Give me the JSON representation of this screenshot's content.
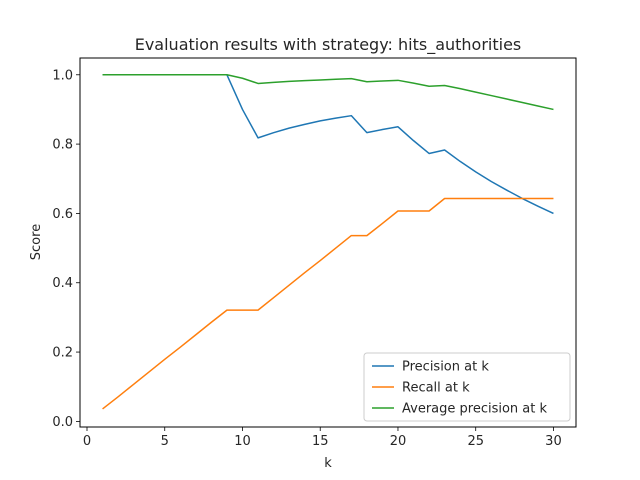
{
  "chart_data": {
    "type": "line",
    "title": "Evaluation results with strategy: hits_authorities",
    "xlabel": "k",
    "ylabel": "Score",
    "xlim": [
      -0.45,
      31.45
    ],
    "ylim": [
      -0.0162,
      1.0484
    ],
    "xticks": [
      0,
      5,
      10,
      15,
      20,
      25,
      30
    ],
    "yticks": [
      0.0,
      0.2,
      0.4,
      0.6,
      0.8,
      1.0
    ],
    "xtick_labels": [
      "0",
      "5",
      "10",
      "15",
      "20",
      "25",
      "30"
    ],
    "ytick_labels": [
      "0.0",
      "0.2",
      "0.4",
      "0.6",
      "0.8",
      "1.0"
    ],
    "legend": "lower-right",
    "grid": false,
    "x": [
      1,
      2,
      3,
      4,
      5,
      6,
      7,
      8,
      9,
      10,
      11,
      12,
      13,
      14,
      15,
      16,
      17,
      18,
      19,
      20,
      21,
      22,
      23,
      24,
      25,
      26,
      27,
      28,
      29,
      30
    ],
    "series": [
      {
        "name": "Precision at k",
        "color": "#1f77b4",
        "values": [
          1.0,
          1.0,
          1.0,
          1.0,
          1.0,
          1.0,
          1.0,
          1.0,
          1.0,
          0.9,
          0.818,
          0.833,
          0.846,
          0.857,
          0.867,
          0.875,
          0.882,
          0.833,
          0.842,
          0.85,
          0.81,
          0.773,
          0.783,
          0.75,
          0.72,
          0.692,
          0.667,
          0.643,
          0.621,
          0.6
        ]
      },
      {
        "name": "Recall at k",
        "color": "#ff7f0e",
        "values": [
          0.036,
          0.071,
          0.107,
          0.143,
          0.179,
          0.214,
          0.25,
          0.286,
          0.321,
          0.321,
          0.321,
          0.357,
          0.393,
          0.429,
          0.464,
          0.5,
          0.536,
          0.536,
          0.571,
          0.607,
          0.607,
          0.607,
          0.643,
          0.643,
          0.643,
          0.643,
          0.643,
          0.643,
          0.643,
          0.643
        ]
      },
      {
        "name": "Average precision at k",
        "color": "#2ca02c",
        "values": [
          1.0,
          1.0,
          1.0,
          1.0,
          1.0,
          1.0,
          1.0,
          1.0,
          1.0,
          0.99,
          0.975,
          0.978,
          0.981,
          0.983,
          0.985,
          0.987,
          0.989,
          0.98,
          0.982,
          0.984,
          0.976,
          0.967,
          0.969,
          0.96,
          0.95,
          0.94,
          0.93,
          0.92,
          0.91,
          0.9
        ]
      }
    ]
  }
}
